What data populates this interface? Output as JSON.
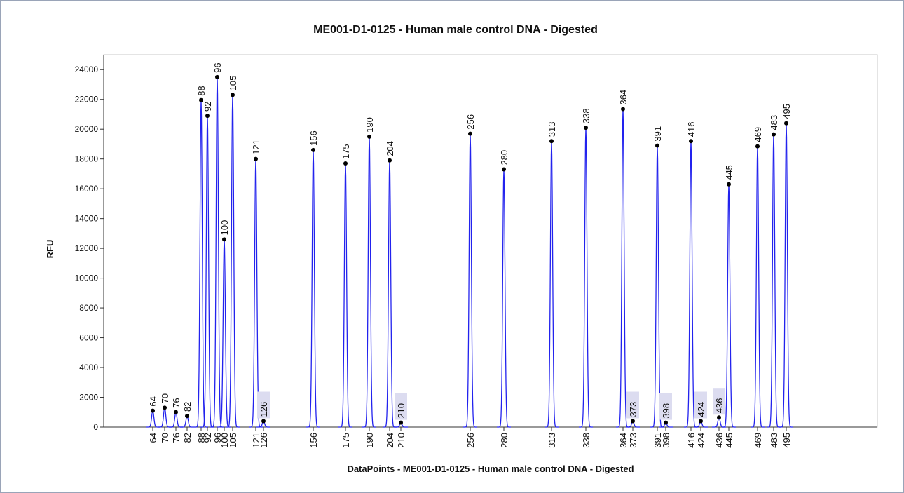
{
  "chart_data": {
    "type": "electropherogram",
    "title": "ME001-D1-0125 - Human male control DNA - Digested",
    "x_label": "DataPoints - ME001-D1-0125 - Human male control DNA - Digested",
    "y_label": "RFU",
    "color": "#2222ee",
    "xlim": [
      0,
      1104
    ],
    "ylim": [
      0,
      25000
    ],
    "yticks": [
      0,
      2000,
      4000,
      6000,
      8000,
      10000,
      12000,
      14000,
      16000,
      18000,
      20000,
      22000,
      24000
    ],
    "series": [
      {
        "name": "Peaks",
        "labels": [
          "64",
          "70",
          "76",
          "82",
          "88",
          "92",
          "96",
          "100",
          "105",
          "121",
          "126",
          "156",
          "175",
          "190",
          "204",
          "210",
          "256",
          "280",
          "313",
          "338",
          "364",
          "373",
          "391",
          "398",
          "416",
          "424",
          "436",
          "445",
          "469",
          "483",
          "495"
        ],
        "x": [
          70,
          87,
          103,
          119,
          139,
          148,
          162,
          172,
          184,
          217,
          228,
          299,
          345,
          379,
          408,
          424,
          523,
          571,
          639,
          688,
          741,
          755,
          790,
          802,
          838,
          852,
          878,
          892,
          933,
          956,
          974
        ],
        "values": [
          1100,
          1300,
          1000,
          750,
          21950,
          20900,
          23500,
          12600,
          22300,
          18000,
          400,
          18600,
          17700,
          19500,
          17900,
          300,
          19700,
          17300,
          19200,
          20100,
          21350,
          400,
          18900,
          300,
          19200,
          400,
          650,
          16300,
          18850,
          19650,
          20400
        ]
      }
    ]
  }
}
